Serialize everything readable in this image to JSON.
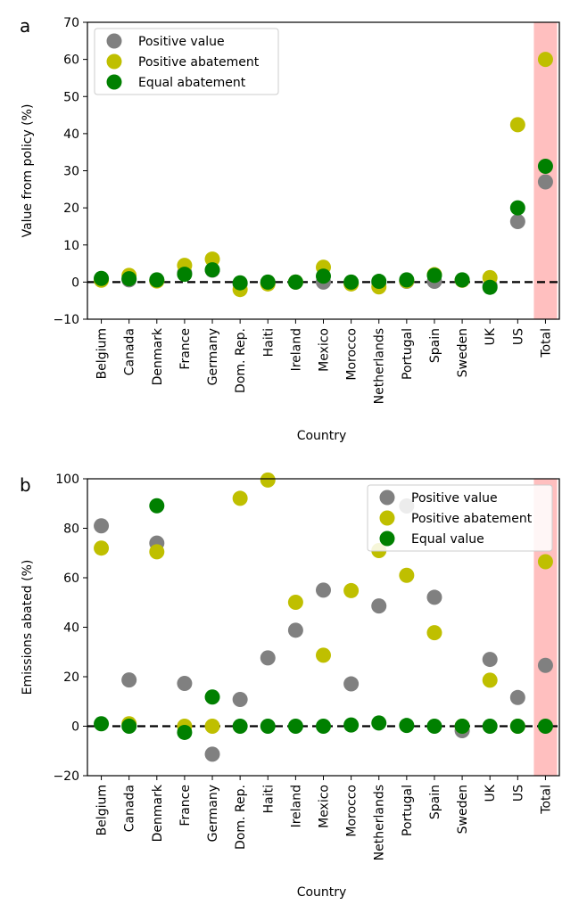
{
  "panel_labels": [
    "a",
    "b"
  ],
  "colors": {
    "gray": "#808080",
    "olive": "#bfbf00",
    "green": "#008000",
    "highlight": "#ffbfbf"
  },
  "chart_data": [
    {
      "type": "scatter",
      "xlabel": "Country",
      "ylabel": "Value from policy (%)",
      "ylim": [
        -10,
        70
      ],
      "yticks": [
        -10,
        0,
        10,
        20,
        30,
        40,
        50,
        60,
        70
      ],
      "legend_position": "top-left",
      "highlight_category": "Total",
      "zero_line": true,
      "categories": [
        "Belgium",
        "Canada",
        "Denmark",
        "France",
        "Germany",
        "Dom. Rep.",
        "Haiti",
        "Ireland",
        "Mexico",
        "Morocco",
        "Netherlands",
        "Portugal",
        "Spain",
        "Sweden",
        "UK",
        "US",
        "Total"
      ],
      "series": [
        {
          "name": "Positive value",
          "color": "#808080",
          "values": [
            0.8,
            0.6,
            0.4,
            2.5,
            3.2,
            -0.5,
            -0.3,
            0,
            0,
            -0.3,
            -0.2,
            0.2,
            0.2,
            0.5,
            -1.0,
            16.3,
            27.0
          ]
        },
        {
          "name": "Positive abatement",
          "color": "#bfbf00",
          "values": [
            0.5,
            1.8,
            0.3,
            4.5,
            6.2,
            -2.0,
            -0.5,
            0,
            4.0,
            -0.5,
            -1.3,
            0.3,
            2.0,
            0.5,
            1.2,
            42.4,
            60.0
          ]
        },
        {
          "name": "Equal abatement",
          "color": "#008000",
          "values": [
            1.0,
            0.9,
            0.6,
            2.1,
            3.3,
            -0.2,
            0,
            0,
            1.6,
            0,
            0.2,
            0.6,
            1.8,
            0.6,
            -1.4,
            20.0,
            31.2
          ]
        }
      ]
    },
    {
      "type": "scatter",
      "xlabel": "Country",
      "ylabel": "Emissions abated (%)",
      "ylim": [
        -20,
        100
      ],
      "yticks": [
        -20,
        0,
        20,
        40,
        60,
        80,
        100
      ],
      "legend_position": "top-right",
      "highlight_category": "Total",
      "zero_line": true,
      "categories": [
        "Belgium",
        "Canada",
        "Denmark",
        "France",
        "Germany",
        "Dom. Rep.",
        "Haiti",
        "Ireland",
        "Mexico",
        "Morocco",
        "Netherlands",
        "Portugal",
        "Spain",
        "Sweden",
        "UK",
        "US",
        "Total"
      ],
      "series": [
        {
          "name": "Positive value",
          "color": "#808080",
          "values": [
            81.0,
            18.7,
            74.0,
            17.3,
            -11.3,
            10.8,
            27.6,
            38.8,
            55.0,
            17.1,
            48.6,
            89.0,
            52.1,
            -1.8,
            27.0,
            11.6,
            24.6
          ]
        },
        {
          "name": "Positive abatement",
          "color": "#bfbf00",
          "values": [
            72.0,
            1.0,
            70.5,
            0,
            0,
            92.1,
            99.5,
            50.1,
            28.7,
            54.8,
            71.0,
            61.0,
            37.8,
            0,
            18.6,
            0,
            66.5
          ]
        },
        {
          "name": "Equal value",
          "color": "#008000",
          "values": [
            1.0,
            0,
            89.1,
            -2.5,
            11.8,
            0,
            0,
            0,
            0,
            0.5,
            1.3,
            0.3,
            0,
            0,
            0,
            0,
            0
          ]
        }
      ]
    }
  ]
}
